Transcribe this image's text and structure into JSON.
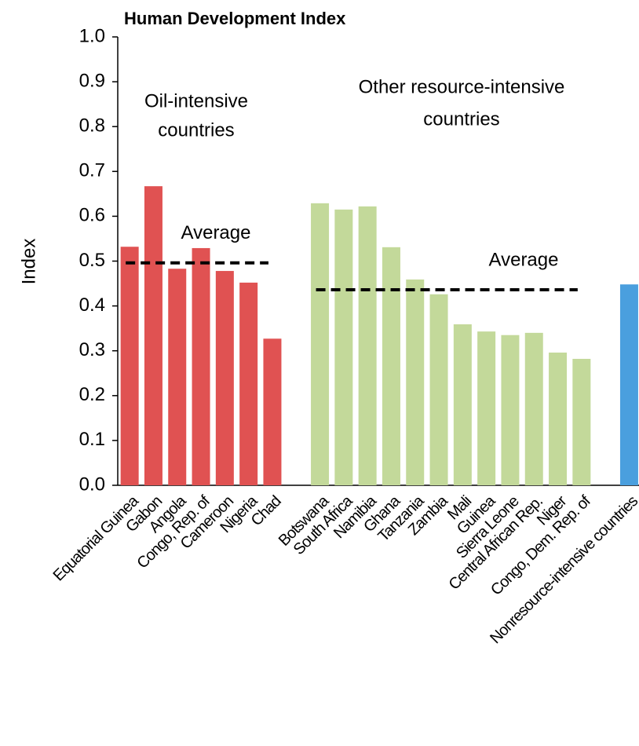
{
  "chart_data": {
    "type": "bar",
    "title": "Human Development Index",
    "y_label": "Index",
    "categories": [
      "Equatorial Guinea",
      "Gabon",
      "Angola",
      "Congo, Rep. of",
      "Cameroon",
      "Nigeria",
      "Chad",
      null,
      "Botswana",
      "South Africa",
      "Namibia",
      "Ghana",
      "Tanzania",
      "Zambia",
      "Mali",
      "Guinea",
      "Sierra Leone",
      "Central African Rep.",
      "Niger",
      "Congo, Dem. Rep. of",
      null,
      "Nonresource-intensive countries"
    ],
    "values": [
      0.532,
      0.667,
      0.483,
      0.529,
      0.478,
      0.452,
      0.327,
      null,
      0.629,
      0.615,
      0.622,
      0.531,
      0.459,
      0.426,
      0.359,
      0.343,
      0.335,
      0.34,
      0.296,
      0.282,
      null,
      0.448
    ],
    "colors": [
      "#e05252",
      "#e05252",
      "#e05252",
      "#e05252",
      "#e05252",
      "#e05252",
      "#e05252",
      null,
      "#c3d99a",
      "#c3d99a",
      "#c3d99a",
      "#c3d99a",
      "#c3d99a",
      "#c3d99a",
      "#c3d99a",
      "#c3d99a",
      "#c3d99a",
      "#c3d99a",
      "#c3d99a",
      "#c3d99a",
      null,
      "#4a9fde"
    ],
    "groups": [
      {
        "label": [
          "Oil-intensive",
          "countries"
        ],
        "average": 0.496,
        "average_label": "Average"
      },
      {
        "label": [
          "Other resource-intensive",
          "countries"
        ],
        "average": 0.436,
        "average_label": "Average"
      }
    ],
    "ylim": [
      0,
      1.0
    ],
    "yticks": [
      {
        "value": 0,
        "label": "0.0"
      },
      0.1,
      0.2,
      0.3,
      0.4,
      0.5,
      0.6,
      0.7,
      0.8,
      0.9,
      {
        "value": 1,
        "label": "1.0"
      }
    ]
  }
}
